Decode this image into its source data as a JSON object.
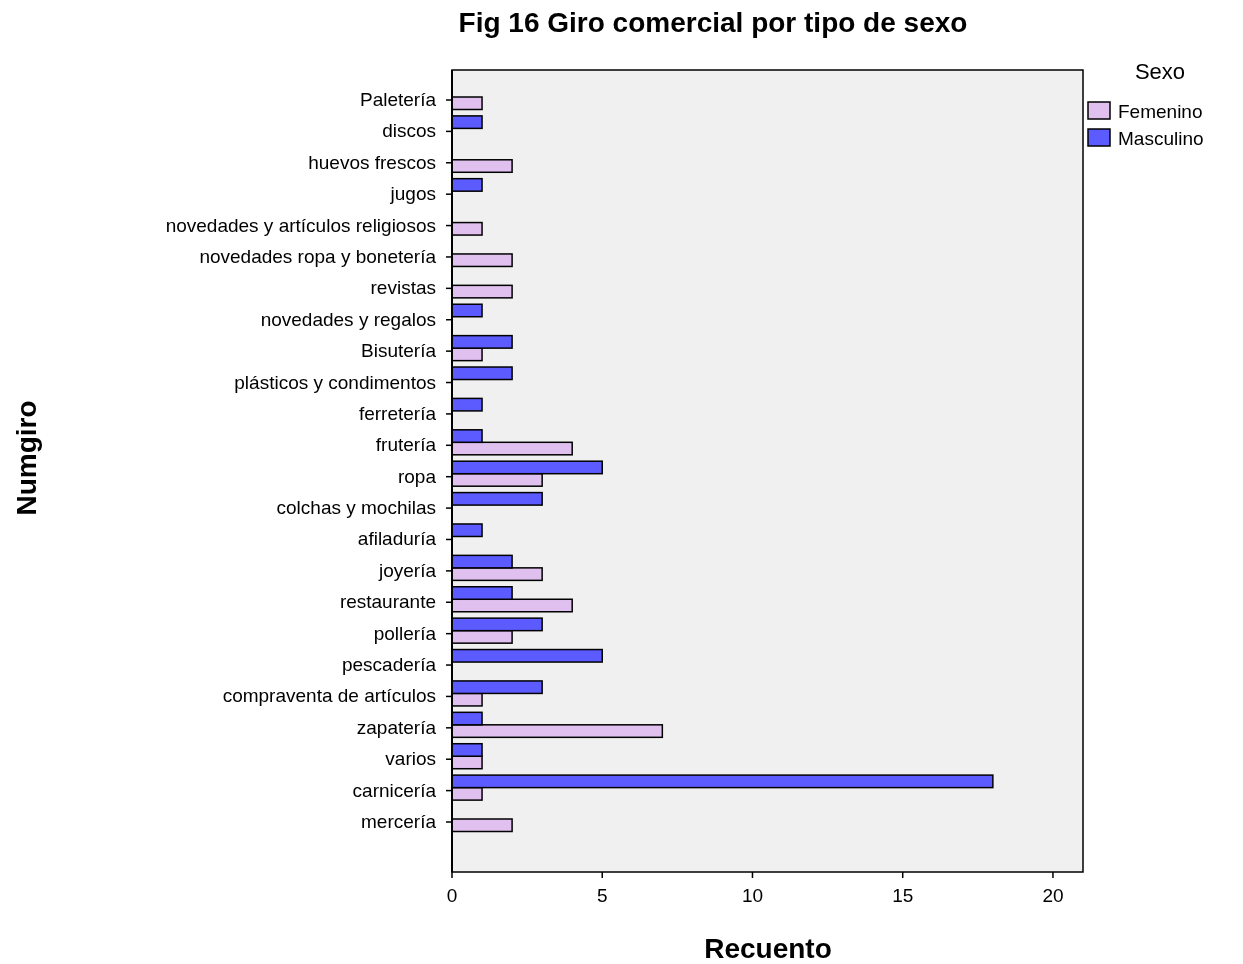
{
  "chart_data": {
    "type": "bar",
    "orientation": "horizontal",
    "title": "Fig 16 Giro comercial por tipo de sexo",
    "xlabel": "Recuento",
    "ylabel": "Numgiro",
    "legend_title": "Sexo",
    "legend": "right",
    "grid": false,
    "categories": [
      "Paletería",
      "discos",
      "huevos frescos",
      "jugos",
      "novedades y artículos religiosos",
      "novedades ropa y bonetería",
      "revistas",
      "novedades y regalos",
      "Bisutería",
      "plásticos y condimentos",
      "ferretería",
      "frutería",
      "ropa",
      "colchas y mochilas",
      "afiladuría",
      "joyería",
      "restaurante",
      "pollería",
      "pescadería",
      "compraventa de artículos",
      "zapatería",
      "varios",
      "carnicería",
      "mercería"
    ],
    "series": [
      {
        "name": "Femenino",
        "color": "#dfc0ee",
        "values": [
          1,
          null,
          2,
          null,
          1,
          2,
          2,
          null,
          1,
          null,
          null,
          4,
          3,
          null,
          null,
          3,
          4,
          2,
          null,
          1,
          7,
          1,
          1,
          2
        ]
      },
      {
        "name": "Masculino",
        "color": "#5b5bff",
        "values": [
          null,
          1,
          null,
          1,
          null,
          null,
          null,
          1,
          2,
          2,
          1,
          1,
          5,
          3,
          1,
          2,
          2,
          3,
          5,
          3,
          1,
          1,
          18,
          null
        ]
      }
    ],
    "xlim": [
      0,
      21
    ],
    "xticks": [
      0,
      5,
      10,
      15,
      20
    ]
  }
}
